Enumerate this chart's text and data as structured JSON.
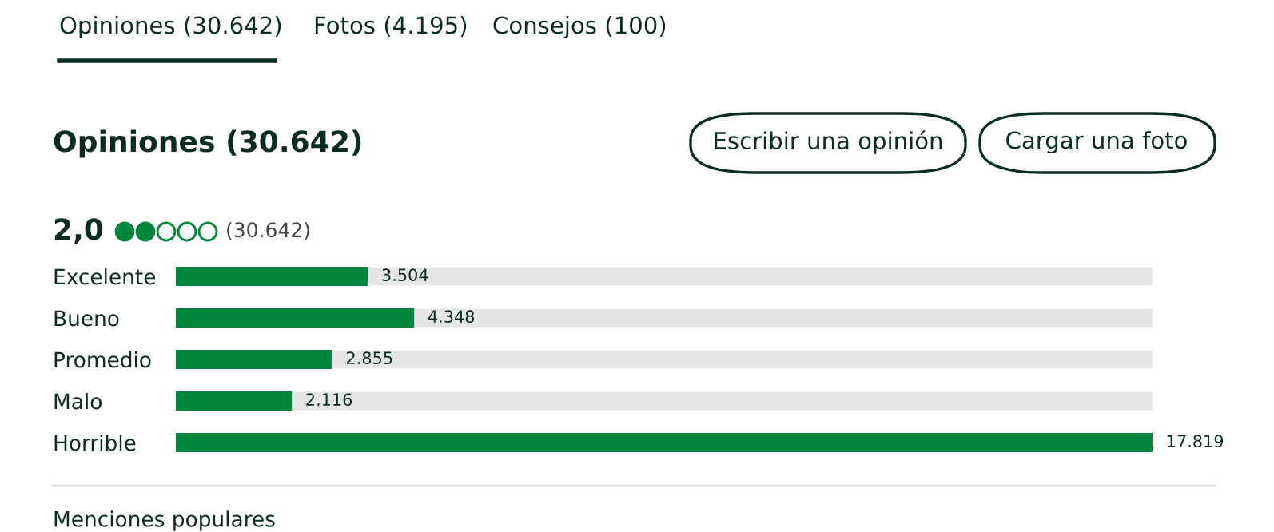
{
  "chart_data": {
    "type": "bar",
    "orientation": "horizontal",
    "title": "Opiniones (30.642)",
    "categories": [
      "Excelente",
      "Bueno",
      "Promedio",
      "Malo",
      "Horrible"
    ],
    "values": [
      3504,
      4348,
      2855,
      2116,
      17819
    ],
    "value_labels": [
      "3.504",
      "4.348",
      "2.855",
      "2.116",
      "17.819"
    ],
    "color": "#00873d",
    "annotations": [
      "Opiniones (30.642)",
      "Fotos (4.195)",
      "Consejos (100)",
      "Escribir una opinión",
      "Cargar una foto",
      "2,0",
      "(30.642)",
      "Menciones populares"
    ],
    "grid": false,
    "legend": false
  }
}
